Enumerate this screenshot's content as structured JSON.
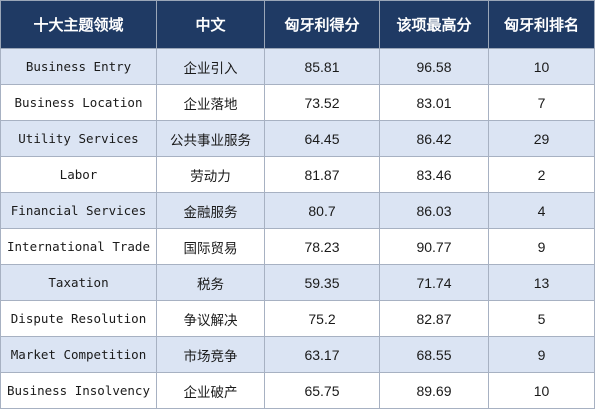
{
  "headers": [
    "十大主题领域",
    "中文",
    "匈牙利得分",
    "该项最高分",
    "匈牙利排名"
  ],
  "rows": [
    {
      "area": "Business Entry",
      "cn": "企业引入",
      "score": "85.81",
      "max": "96.58",
      "rank": "10"
    },
    {
      "area": "Business Location",
      "cn": "企业落地",
      "score": "73.52",
      "max": "83.01",
      "rank": "7"
    },
    {
      "area": "Utility Services",
      "cn": "公共事业服务",
      "score": "64.45",
      "max": "86.42",
      "rank": "29"
    },
    {
      "area": "Labor",
      "cn": "劳动力",
      "score": "81.87",
      "max": "83.46",
      "rank": "2"
    },
    {
      "area": "Financial Services",
      "cn": "金融服务",
      "score": "80.7",
      "max": "86.03",
      "rank": "4"
    },
    {
      "area": "International Trade",
      "cn": "国际贸易",
      "score": "78.23",
      "max": "90.77",
      "rank": "9"
    },
    {
      "area": "Taxation",
      "cn": "税务",
      "score": "59.35",
      "max": "71.74",
      "rank": "13"
    },
    {
      "area": "Dispute Resolution",
      "cn": "争议解决",
      "score": "75.2",
      "max": "82.87",
      "rank": "5"
    },
    {
      "area": "Market Competition",
      "cn": "市场竞争",
      "score": "63.17",
      "max": "68.55",
      "rank": "9"
    },
    {
      "area": "Business Insolvency",
      "cn": "企业破产",
      "score": "65.75",
      "max": "89.69",
      "rank": "10"
    }
  ],
  "colors": {
    "header_bg": "#1f3a64",
    "stripe": "#dbe4f3",
    "grid": "#a7b1c2"
  }
}
